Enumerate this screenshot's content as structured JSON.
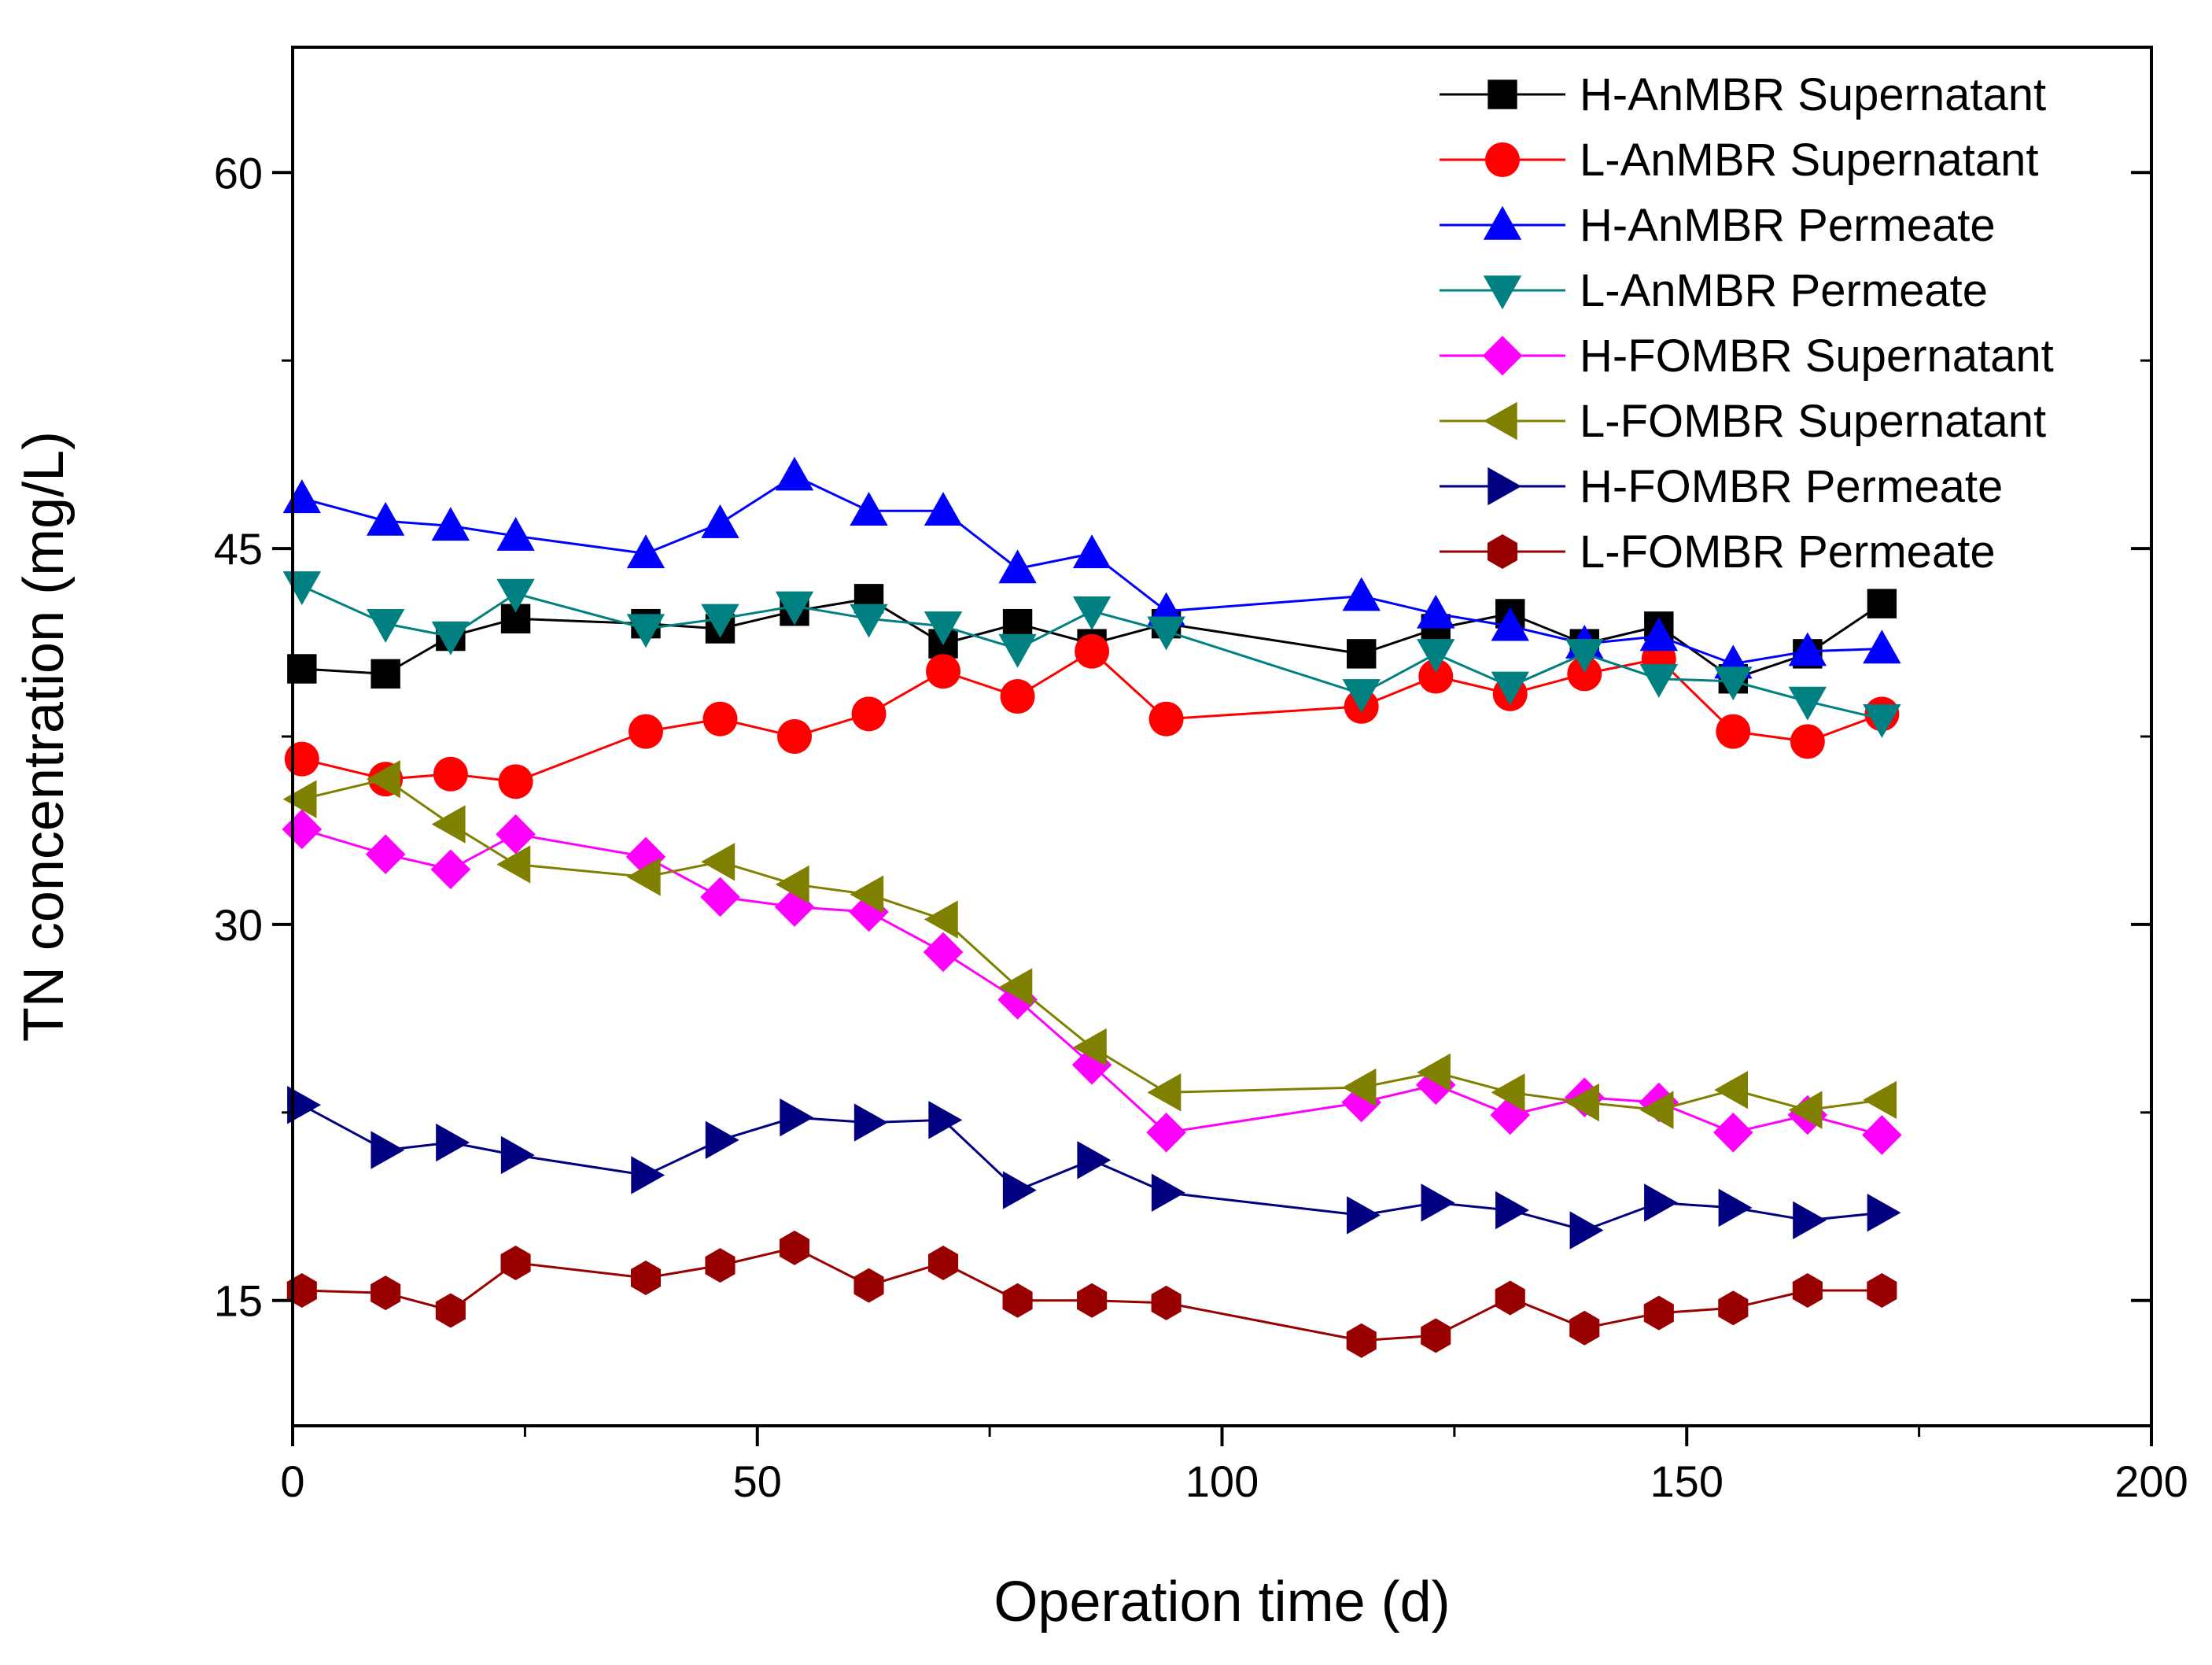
{
  "chart_data": {
    "type": "line",
    "title": "",
    "xlabel": "Operation time (d)",
    "ylabel": "TN concentration (mg/L)",
    "xlim": [
      0,
      200
    ],
    "ylim": [
      10,
      65
    ],
    "xticks": [
      0,
      50,
      100,
      150,
      200
    ],
    "yticks": [
      15,
      30,
      45,
      60
    ],
    "grid": false,
    "legend_position": "top-right",
    "series": [
      {
        "name": "H-AnMBR Supernatant",
        "marker": "square",
        "color": "#000000",
        "x": [
          1,
          10,
          17,
          24,
          38,
          46,
          54,
          62,
          70,
          78,
          86,
          94,
          115,
          123,
          131,
          139,
          147,
          155,
          163,
          171
        ],
        "y": [
          40.2,
          40.0,
          41.5,
          42.2,
          42.0,
          41.8,
          42.5,
          43.0,
          41.2,
          42.0,
          41.2,
          42.0,
          40.8,
          41.8,
          42.4,
          41.2,
          41.9,
          39.8,
          40.8,
          42.8
        ]
      },
      {
        "name": "L-AnMBR Supernatant",
        "marker": "circle",
        "color": "#ff0000",
        "x": [
          1,
          10,
          17,
          24,
          38,
          46,
          54,
          62,
          70,
          78,
          86,
          94,
          115,
          123,
          131,
          139,
          147,
          155,
          163,
          171
        ],
        "y": [
          36.6,
          35.8,
          36.0,
          35.7,
          37.7,
          38.2,
          37.5,
          38.4,
          40.1,
          39.1,
          40.9,
          38.2,
          38.7,
          39.9,
          39.2,
          40.0,
          40.6,
          37.7,
          37.3,
          38.4
        ]
      },
      {
        "name": "H-AnMBR Permeate",
        "marker": "triangle-up",
        "color": "#0000ff",
        "x": [
          1,
          10,
          17,
          24,
          38,
          46,
          54,
          62,
          70,
          78,
          86,
          94,
          115,
          123,
          131,
          139,
          147,
          155,
          163,
          171
        ],
        "y": [
          47.0,
          46.1,
          45.9,
          45.5,
          44.8,
          46.0,
          47.9,
          46.5,
          46.5,
          44.2,
          44.8,
          42.5,
          43.1,
          42.4,
          41.9,
          41.2,
          41.5,
          40.4,
          40.9,
          41.0
        ]
      },
      {
        "name": "L-AnMBR Permeate",
        "marker": "triangle-down",
        "color": "#008080",
        "x": [
          1,
          10,
          17,
          24,
          38,
          46,
          54,
          62,
          70,
          78,
          86,
          94,
          115,
          123,
          131,
          139,
          147,
          155,
          163,
          171
        ],
        "y": [
          43.5,
          42.0,
          41.5,
          43.2,
          41.8,
          42.2,
          42.7,
          42.2,
          41.9,
          41.0,
          42.5,
          41.7,
          39.2,
          40.8,
          39.5,
          40.8,
          39.8,
          39.7,
          38.9,
          38.2
        ]
      },
      {
        "name": "H-FOMBR Supernatant",
        "marker": "diamond",
        "color": "#ff00ff",
        "x": [
          1,
          10,
          17,
          24,
          38,
          46,
          54,
          62,
          70,
          78,
          86,
          94,
          115,
          123,
          131,
          139,
          147,
          155,
          163,
          171
        ],
        "y": [
          33.8,
          32.8,
          32.2,
          33.6,
          32.7,
          31.1,
          30.7,
          30.5,
          28.9,
          27.0,
          24.4,
          21.7,
          22.9,
          23.6,
          22.4,
          23.1,
          22.9,
          21.7,
          22.4,
          21.6
        ]
      },
      {
        "name": "L-FOMBR Supernatant",
        "marker": "triangle-left",
        "color": "#808000",
        "x": [
          1,
          10,
          17,
          24,
          38,
          46,
          54,
          62,
          70,
          78,
          86,
          94,
          115,
          123,
          131,
          139,
          147,
          155,
          163,
          171
        ],
        "y": [
          35.0,
          35.8,
          34.0,
          32.4,
          31.9,
          32.5,
          31.6,
          31.2,
          30.2,
          27.5,
          25.1,
          23.3,
          23.5,
          24.1,
          23.3,
          22.9,
          22.6,
          23.4,
          22.6,
          23.0
        ]
      },
      {
        "name": "H-FOMBR Permeate",
        "marker": "triangle-right",
        "color": "#000080",
        "x": [
          1,
          10,
          17,
          24,
          38,
          46,
          54,
          62,
          70,
          78,
          86,
          94,
          115,
          123,
          131,
          139,
          147,
          155,
          163,
          171
        ],
        "y": [
          22.8,
          21.0,
          21.3,
          20.8,
          20.0,
          21.4,
          22.3,
          22.1,
          22.2,
          19.4,
          20.6,
          19.3,
          18.4,
          18.9,
          18.6,
          17.8,
          18.9,
          18.7,
          18.2,
          18.5
        ]
      },
      {
        "name": "L-FOMBR Permeate",
        "marker": "hexagon",
        "color": "#990000",
        "x": [
          1,
          10,
          17,
          24,
          38,
          46,
          54,
          62,
          70,
          78,
          86,
          94,
          115,
          123,
          131,
          139,
          147,
          155,
          163,
          171
        ],
        "y": [
          15.4,
          15.3,
          14.6,
          16.5,
          15.9,
          16.4,
          17.1,
          15.6,
          16.5,
          15.0,
          15.0,
          14.9,
          13.4,
          13.6,
          15.1,
          13.9,
          14.5,
          14.7,
          15.4,
          15.4
        ]
      }
    ]
  }
}
